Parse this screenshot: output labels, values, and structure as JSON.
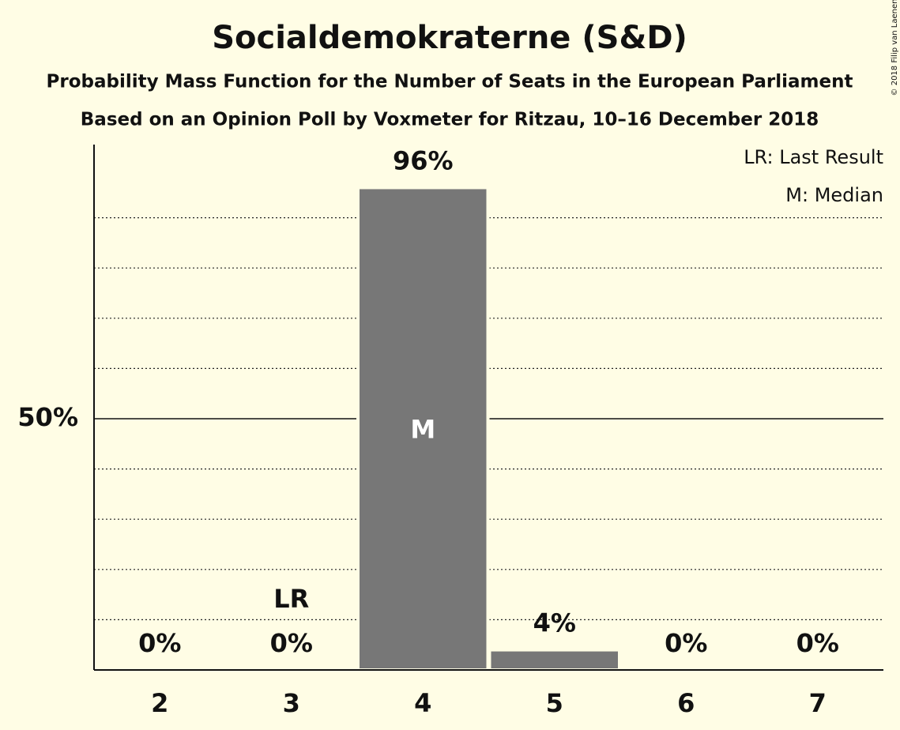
{
  "chart_data": {
    "type": "bar",
    "title": "Socialdemokraterne (S&D)",
    "subtitles": [
      "Probability Mass Function for the Number of Seats in the European Parliament",
      "Based on an Opinion Poll by Voxmeter for Ritzau, 10–16 December 2018"
    ],
    "categories": [
      "2",
      "3",
      "4",
      "5",
      "6",
      "7"
    ],
    "values": [
      0,
      0,
      96,
      4,
      0,
      0
    ],
    "value_labels": [
      "0%",
      "0%",
      "96%",
      "4%",
      "0%",
      "0%"
    ],
    "color": "#777777",
    "ylim": [
      0,
      100
    ],
    "yticks": [
      {
        "value": 50,
        "label": "50%"
      }
    ],
    "minor_yticks": [
      10,
      20,
      30,
      40,
      60,
      70,
      80,
      90
    ],
    "annotations": [
      {
        "label": "LR",
        "category": "3"
      },
      {
        "label": "M",
        "category": "4"
      }
    ],
    "legend": [
      "LR: Last Result",
      "M: Median"
    ],
    "credit": "© 2018 Filip van Laenen"
  }
}
